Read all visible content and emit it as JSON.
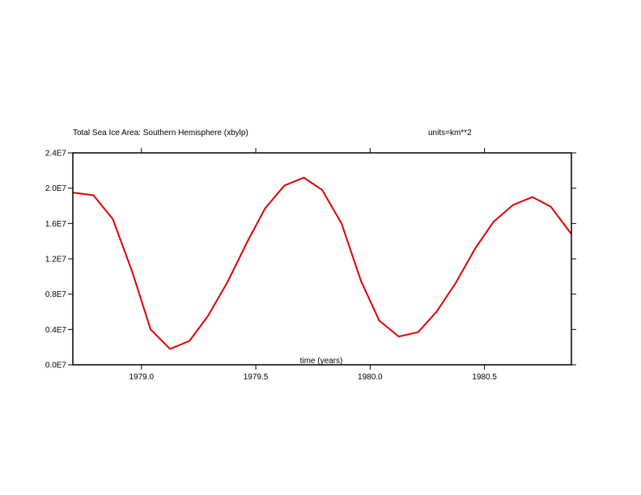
{
  "chart_data": {
    "type": "line",
    "title": "Total Sea Ice Area: Southern Hemisphere (xbylp)",
    "units_label": "units=km**2",
    "xlabel": "time (years)",
    "ylabel": "",
    "xlim": [
      1978.7,
      1980.88
    ],
    "ylim": [
      0.0,
      2.4
    ],
    "y_scale_note": "E7",
    "x_ticks": [
      1979.0,
      1979.5,
      1980.0,
      1980.5
    ],
    "x_tick_labels": [
      "1979.0",
      "1979.5",
      "1980.0",
      "1980.5"
    ],
    "y_ticks": [
      0.0,
      0.4,
      0.8,
      1.2,
      1.6,
      2.0,
      2.4
    ],
    "y_tick_labels": [
      "0.0E7",
      "0.4E7",
      "0.8E7",
      "1.2E7",
      "1.6E7",
      "2.0E7",
      "2.4E7"
    ],
    "grid": false,
    "line_color": "#dd0000",
    "series": [
      {
        "x": [
          1978.7,
          1978.79,
          1978.875,
          1978.96,
          1979.04,
          1979.125,
          1979.21,
          1979.29,
          1979.375,
          1979.46,
          1979.54,
          1979.625,
          1979.71,
          1979.79,
          1979.875,
          1979.96,
          1980.04,
          1980.125,
          1980.21,
          1980.29,
          1980.375,
          1980.46,
          1980.54,
          1980.625,
          1980.71,
          1980.79,
          1980.88
        ],
        "y": [
          1.95,
          1.92,
          1.65,
          1.05,
          0.4,
          0.18,
          0.27,
          0.55,
          0.93,
          1.38,
          1.77,
          2.03,
          2.12,
          1.98,
          1.6,
          0.95,
          0.5,
          0.32,
          0.37,
          0.6,
          0.93,
          1.32,
          1.62,
          1.81,
          1.9,
          1.79,
          1.48
        ]
      }
    ]
  }
}
